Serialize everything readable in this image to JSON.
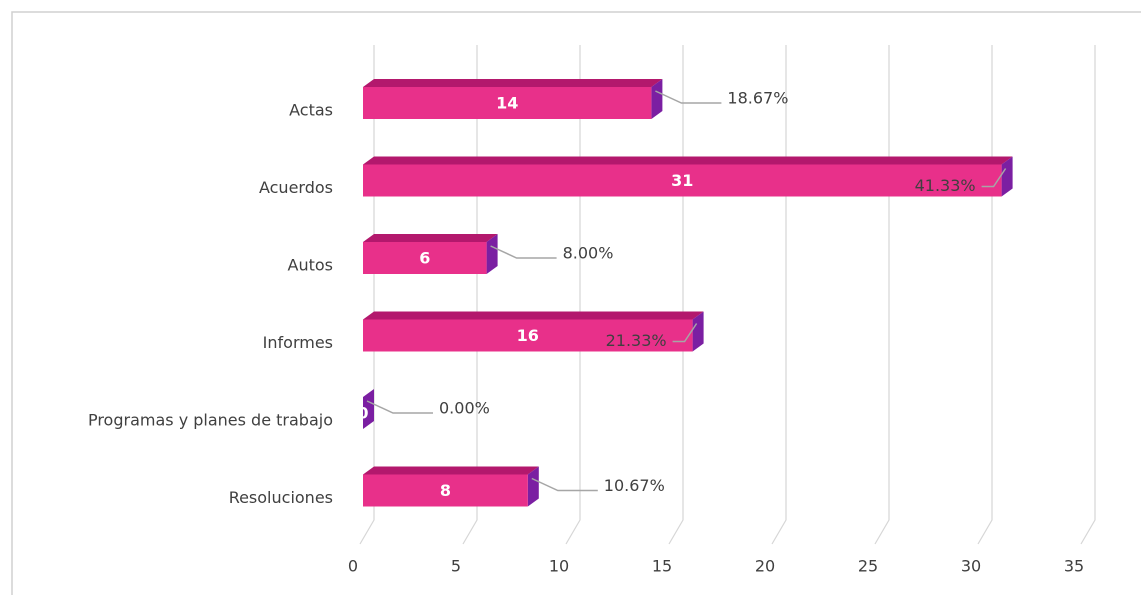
{
  "chart_data": {
    "type": "bar3d_horizontal",
    "categories": [
      "Actas",
      "Acuerdos",
      "Autos",
      "Informes",
      "Programas y planes de trabajo",
      "Resoluciones"
    ],
    "values": [
      14,
      31,
      6,
      16,
      0,
      8
    ],
    "percentages": [
      18.67,
      41.33,
      8,
      21.33,
      0,
      10.67
    ],
    "percentage_labels": [
      "18.67%",
      "41.33%",
      "8.00%",
      "21.33%",
      "0.00%",
      "10.67%"
    ],
    "color": "#e8308a",
    "xlim": [
      0,
      35
    ],
    "xticks": [
      0,
      5,
      10,
      15,
      20,
      25,
      30,
      35
    ],
    "grid": true
  }
}
